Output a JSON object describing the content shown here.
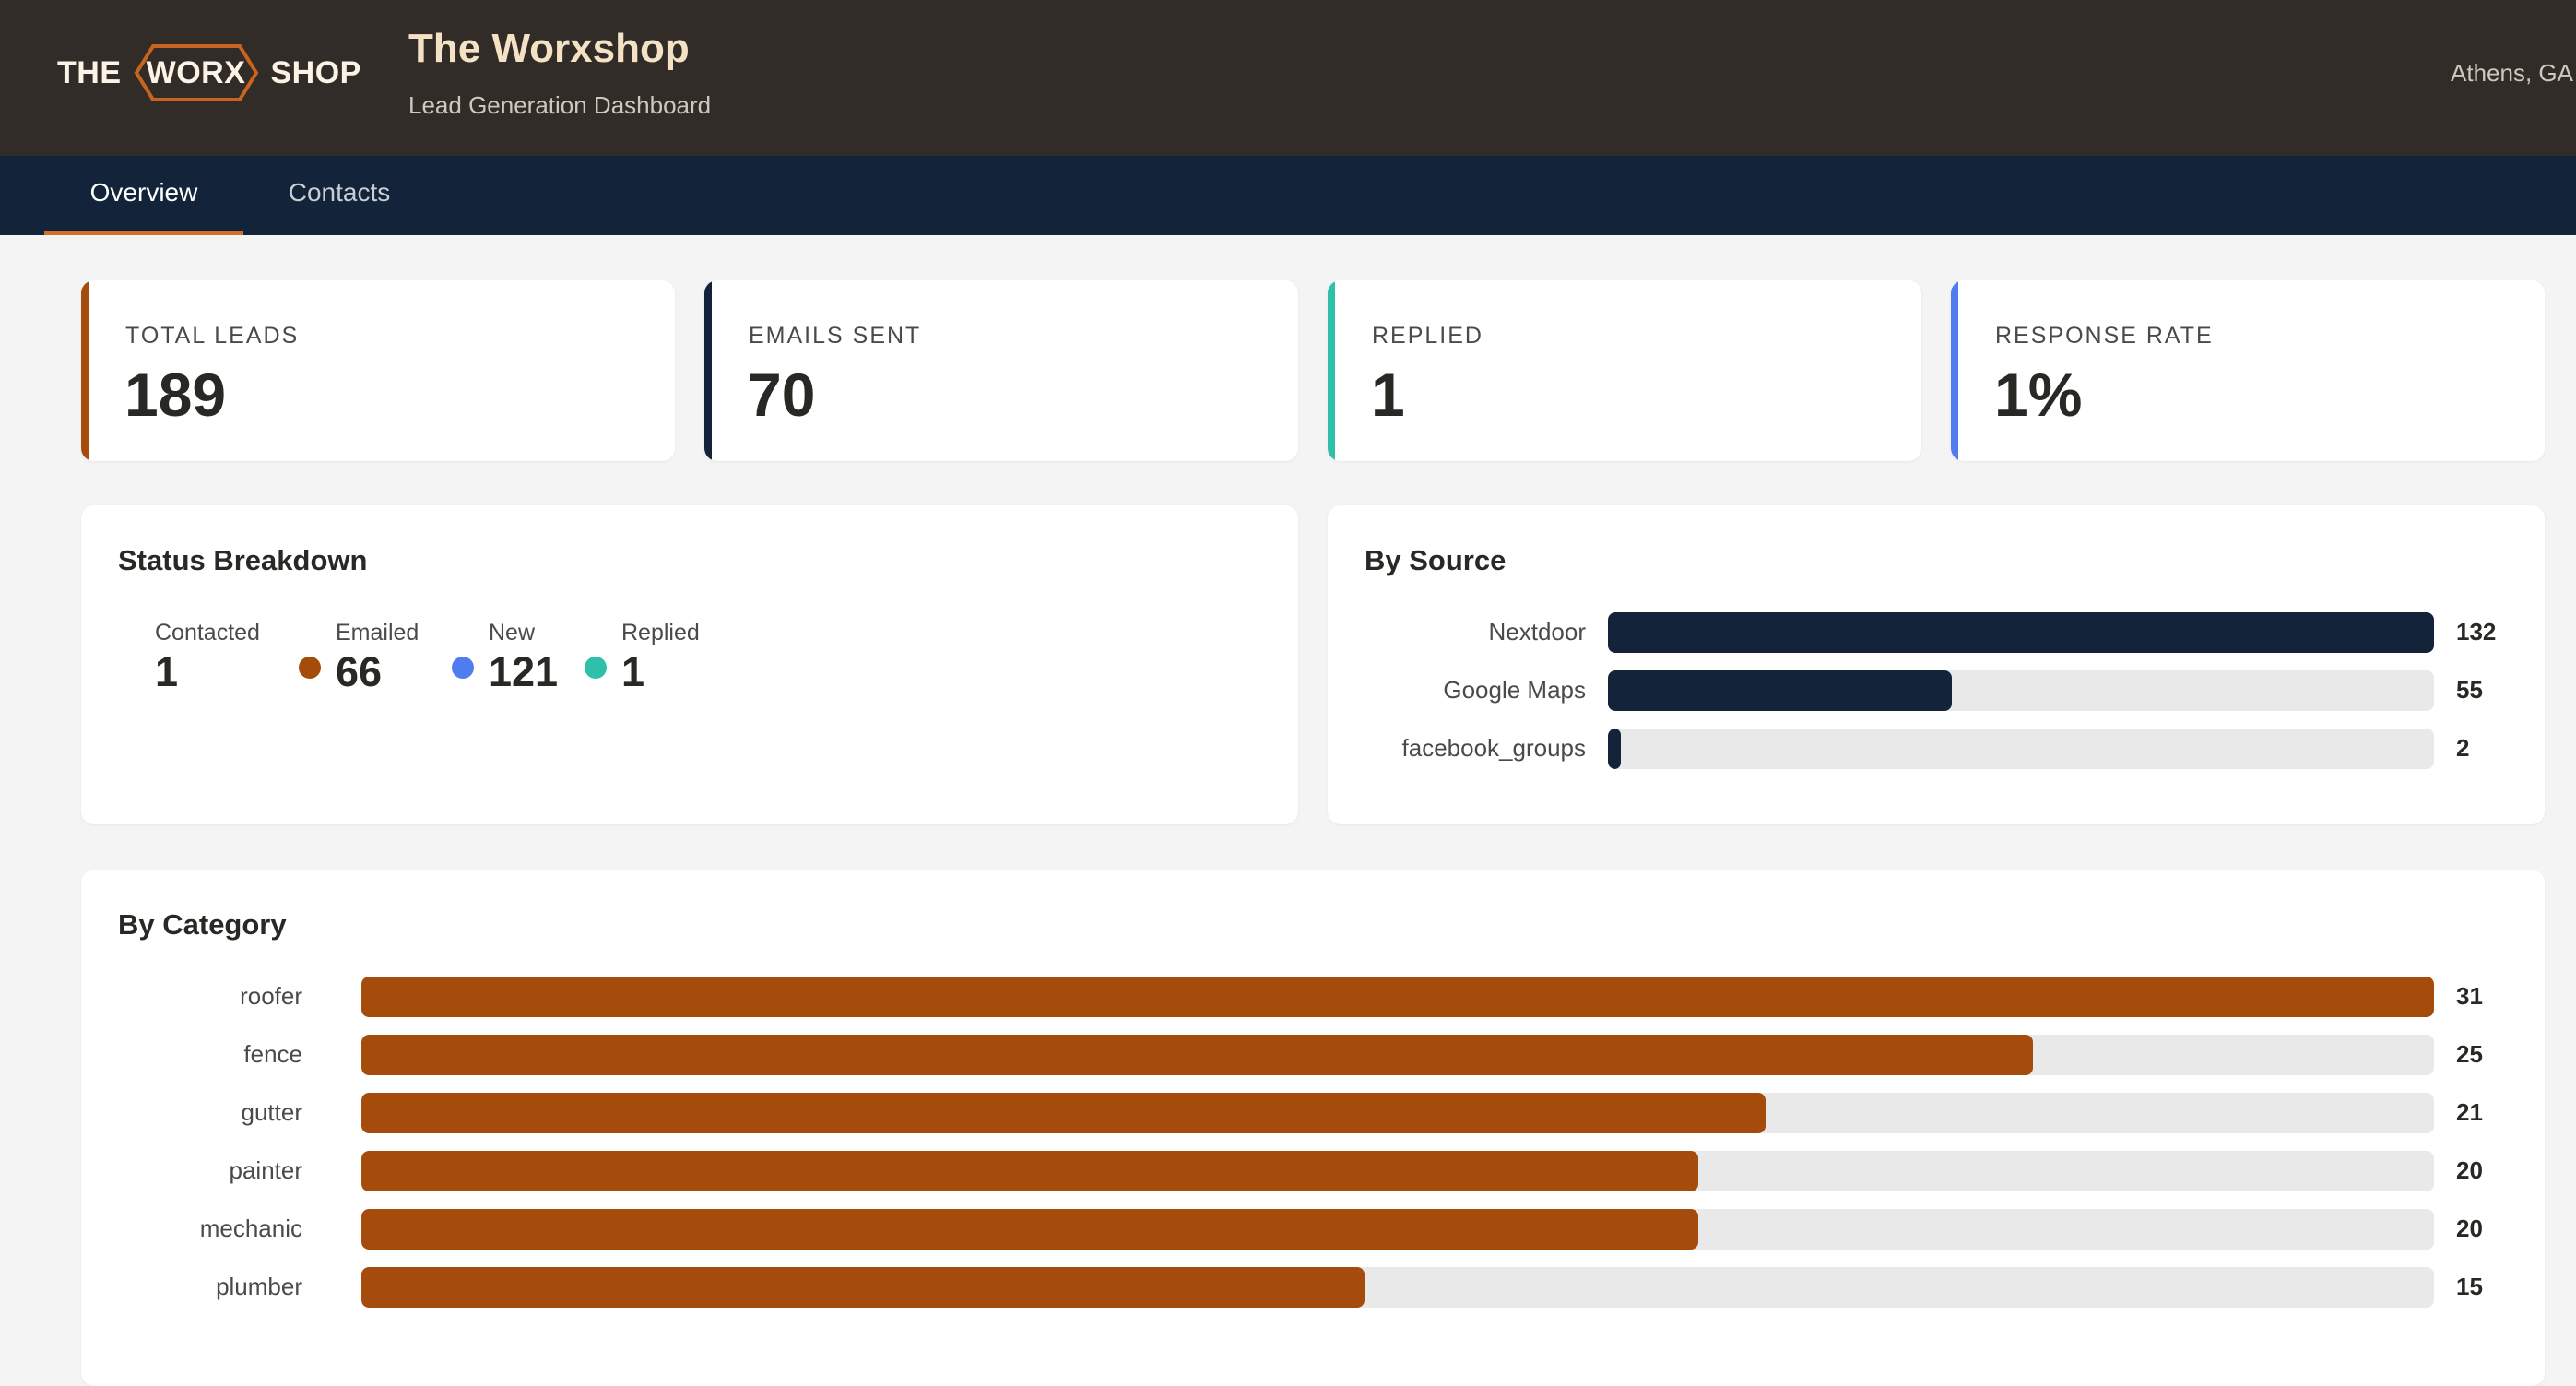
{
  "brand": {
    "logo_left": "THE",
    "logo_mid": "WORX",
    "logo_right": "SHOP",
    "title": "The Worxshop",
    "subtitle": "Lead Generation Dashboard",
    "location": "Athens, GA"
  },
  "tabs": [
    {
      "label": "Overview",
      "active": true
    },
    {
      "label": "Contacts",
      "active": false
    }
  ],
  "kpis": [
    {
      "label": "TOTAL LEADS",
      "value": "189",
      "color": "#a54b0c"
    },
    {
      "label": "EMAILS SENT",
      "value": "70",
      "color": "#13233a"
    },
    {
      "label": "REPLIED",
      "value": "1",
      "color": "#2ec0a8"
    },
    {
      "label": "RESPONSE RATE",
      "value": "1%",
      "color": "#4f7df0"
    }
  ],
  "status_breakdown": {
    "title": "Status Breakdown",
    "items": [
      {
        "label": "Contacted",
        "value": "1"
      },
      {
        "label": "Emailed",
        "value": "66",
        "color": "#a54b0c"
      },
      {
        "label": "New",
        "value": "121",
        "color": "#4f7df0"
      },
      {
        "label": "Replied",
        "value": "1",
        "color": "#2ec0a8"
      }
    ]
  },
  "chart_data": [
    {
      "type": "bar",
      "orientation": "horizontal",
      "title": "By Source",
      "categories": [
        "Nextdoor",
        "Google Maps",
        "facebook_groups"
      ],
      "values": [
        132,
        55,
        2
      ],
      "xlim": [
        0,
        132
      ],
      "color": "#13233a"
    },
    {
      "type": "bar",
      "orientation": "horizontal",
      "title": "By Category",
      "categories": [
        "roofer",
        "fence",
        "gutter",
        "painter",
        "mechanic",
        "plumber"
      ],
      "values": [
        31,
        25,
        21,
        20,
        20,
        15
      ],
      "xlim": [
        0,
        31
      ],
      "color": "#a54b0c"
    }
  ]
}
